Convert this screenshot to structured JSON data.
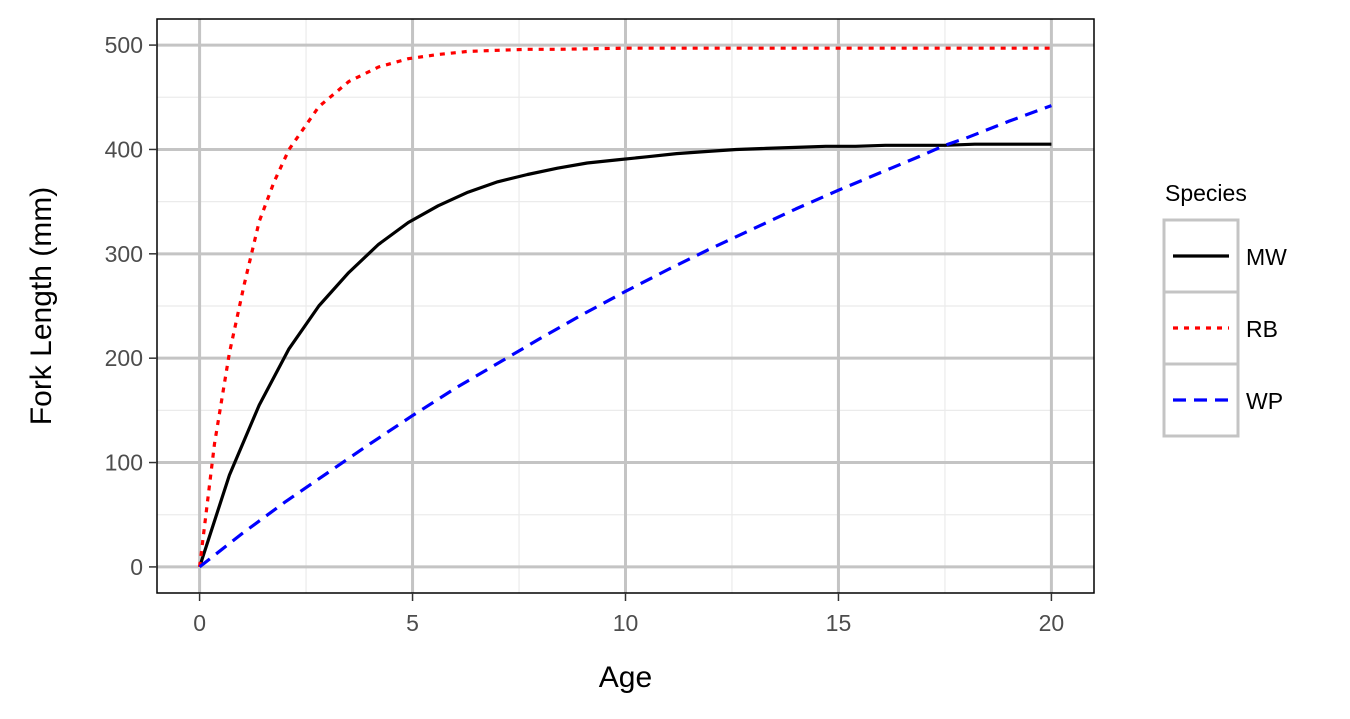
{
  "chart_data": {
    "type": "line",
    "xlabel": "Age",
    "ylabel": "Fork Length (mm)",
    "xlim": [
      -1,
      21
    ],
    "ylim": [
      -25,
      525
    ],
    "x_ticks": [
      0,
      5,
      10,
      15,
      20
    ],
    "y_ticks": [
      0,
      100,
      200,
      300,
      400,
      500
    ],
    "x_tick_labels": [
      "0",
      "5",
      "10",
      "15",
      "20"
    ],
    "y_tick_labels": [
      "0",
      "100",
      "200",
      "300",
      "400",
      "500"
    ],
    "grid": true,
    "legend": {
      "title": "Species",
      "position": "right"
    },
    "series": [
      {
        "name": "MW",
        "color": "#000000",
        "dash": "solid",
        "x": [
          0,
          0.7,
          1.4,
          2.1,
          2.8,
          3.5,
          4.2,
          4.9,
          5.6,
          6.3,
          7,
          7.7,
          8.4,
          9.1,
          9.8,
          10.5,
          11.2,
          11.9,
          12.6,
          13.3,
          14,
          14.7,
          15.4,
          16.1,
          16.8,
          17.5,
          18.2,
          18.9,
          19.6,
          20
        ],
        "y": [
          0,
          88,
          155,
          209,
          250,
          282,
          309,
          330,
          346,
          359,
          369,
          376,
          382,
          387,
          390,
          393,
          396,
          398,
          400,
          401,
          402,
          403,
          403,
          404,
          404,
          404,
          405,
          405,
          405,
          405
        ]
      },
      {
        "name": "RB",
        "color": "#ff0000",
        "dash": "dotted",
        "x": [
          0,
          0.35,
          0.7,
          1.05,
          1.4,
          1.75,
          2.1,
          2.8,
          3.5,
          4.2,
          4.9,
          5.6,
          6.3,
          7,
          7.7,
          8.4,
          10,
          12,
          14,
          16,
          18,
          20
        ],
        "y": [
          0,
          118,
          205,
          271,
          331,
          369,
          400,
          441,
          465,
          479,
          487,
          491,
          494,
          495,
          496,
          496,
          497,
          497,
          497,
          497,
          497,
          497
        ]
      },
      {
        "name": "WP",
        "color": "#0000ff",
        "dash": "dashed",
        "x": [
          0,
          1,
          2,
          3,
          4,
          5,
          6,
          7,
          8,
          9,
          10,
          11,
          12,
          13,
          14,
          15,
          16,
          17,
          17.5,
          18,
          19,
          20
        ],
        "y": [
          0,
          32,
          62,
          90,
          118,
          145,
          171,
          195,
          219,
          242,
          264,
          285,
          305,
          324,
          343,
          361,
          378,
          395,
          404,
          411,
          427,
          442
        ]
      }
    ]
  }
}
